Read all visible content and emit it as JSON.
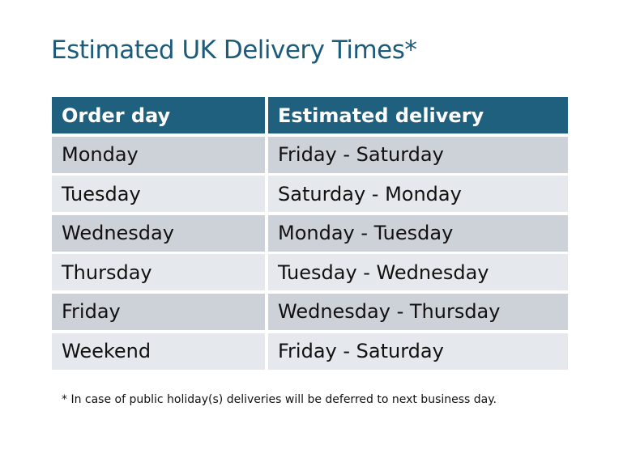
{
  "title": "Estimated UK Delivery Times*",
  "table": {
    "headers": [
      "Order day",
      "Estimated delivery"
    ],
    "rows": [
      [
        "Monday",
        "Friday - Saturday"
      ],
      [
        "Tuesday",
        "Saturday - Monday"
      ],
      [
        "Wednesday",
        "Monday - Tuesday"
      ],
      [
        "Thursday",
        "Tuesday - Wednesday"
      ],
      [
        "Friday",
        "Wednesday - Thursday"
      ],
      [
        "Weekend",
        "Friday - Saturday"
      ]
    ]
  },
  "footnote": "* In case of public holiday(s) deliveries will be deferred to next business day.",
  "colors": {
    "header": "#20607f",
    "title": "#1d5b7a",
    "row_dark": "#cdd1d8",
    "row_light": "#e5e8ec"
  }
}
